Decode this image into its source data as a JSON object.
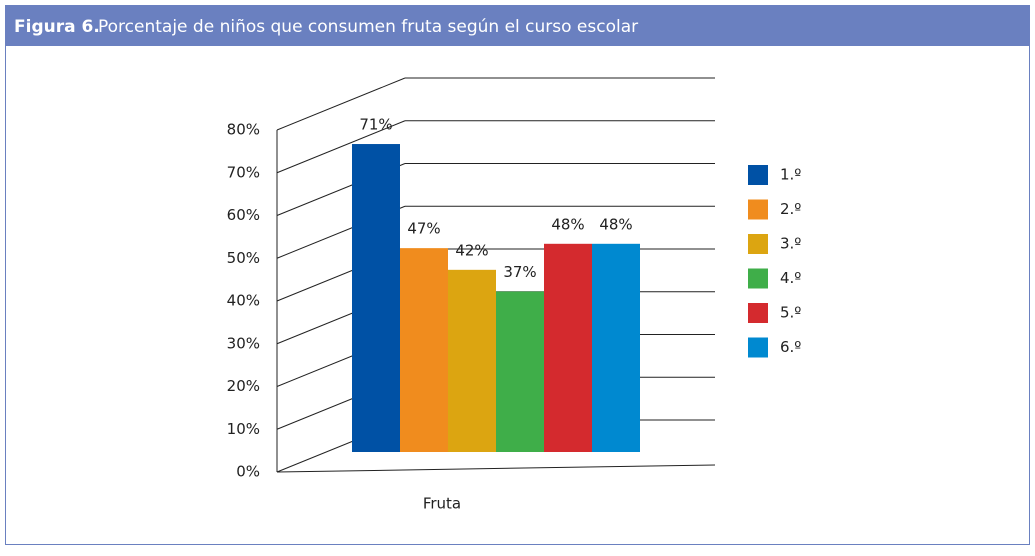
{
  "chart_data": {
    "type": "bar3d",
    "figure_label": "Figura 6.",
    "title": "Porcentaje de niños que consumen fruta según el curso escolar",
    "categories": [
      "Fruta"
    ],
    "series": [
      {
        "name": "1.º",
        "color": "#0051a5",
        "values": [
          71
        ],
        "value_labels": [
          "71%"
        ]
      },
      {
        "name": "2.º",
        "color": "#f08c1e",
        "values": [
          47
        ],
        "value_labels": [
          "47%"
        ]
      },
      {
        "name": "3.º",
        "color": "#dca511",
        "values": [
          42
        ],
        "value_labels": [
          "42%"
        ]
      },
      {
        "name": "4.º",
        "color": "#3fae49",
        "values": [
          37
        ],
        "value_labels": [
          "37%"
        ]
      },
      {
        "name": "5.º",
        "color": "#d42a2e",
        "values": [
          48
        ],
        "value_labels": [
          "48%"
        ]
      },
      {
        "name": "6.º",
        "color": "#0089d0",
        "values": [
          48
        ],
        "value_labels": [
          "48%"
        ]
      }
    ],
    "ylim": [
      0,
      80
    ],
    "yticks": [
      {
        "value": 0,
        "label": "0%"
      },
      {
        "value": 10,
        "label": "10%"
      },
      {
        "value": 20,
        "label": "20%"
      },
      {
        "value": 30,
        "label": "30%"
      },
      {
        "value": 40,
        "label": "40%"
      },
      {
        "value": 50,
        "label": "50%"
      },
      {
        "value": 60,
        "label": "60%"
      },
      {
        "value": 70,
        "label": "70%"
      },
      {
        "value": 80,
        "label": "80%"
      }
    ],
    "grid": true,
    "legend": "right"
  }
}
